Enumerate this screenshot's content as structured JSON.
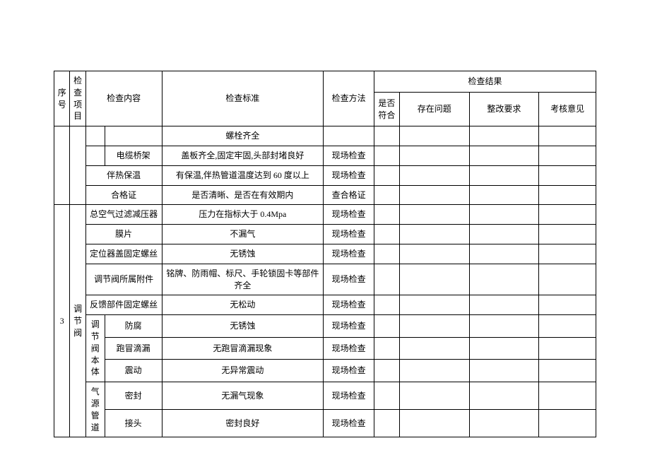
{
  "header": {
    "seq": "序号",
    "item": "检查项目",
    "content": "检查内容",
    "standard": "检查标准",
    "method": "检查方法",
    "result_group": "检查结果",
    "fit": "是否符合",
    "problem": "存在问题",
    "rectify": "整改要求",
    "evaluate": "考核意见"
  },
  "rows": {
    "r0_std": "螺栓齐全",
    "r1_content": "电缆桥架",
    "r1_std": "盖板齐全,固定牢固,头部封堵良好",
    "r1_meth": "现场检查",
    "r2_content": "伴热保温",
    "r2_std": "有保温,伴热管道温度达到 60 度以上",
    "r2_meth": "现场检查",
    "r3_content": "合格证",
    "r3_std": "是否清晰、是否在有效期内",
    "r3_meth": "查合格证",
    "r4_content": "总空气过滤减压器",
    "r4_std": "压力在指标大于 0.4Mpa",
    "r4_meth": "现场检查",
    "r5_content": "膜片",
    "r5_std": "不漏气",
    "r5_meth": "现场检查",
    "r6_content": "定位器盖固定螺丝",
    "r6_std": "无锈蚀",
    "r6_meth": "现场检查",
    "r7_content": "调节阀所属附件",
    "r7_std": "铭牌、防雨帽、标尺、手轮锁固卡等部件齐全",
    "r7_meth": "现场检查",
    "r8_content": "反馈部件固定螺丝",
    "r8_std": "无松动",
    "r8_meth": "现场检查",
    "g1_label": "调节阀本体",
    "r9_content": "防腐",
    "r9_std": "无锈蚀",
    "r9_meth": "现场检查",
    "r10_content": "跑冒滴漏",
    "r10_std": "无跑冒滴漏现象",
    "r10_meth": "现场检查",
    "r11_content": "震动",
    "r11_std": "无异常震动",
    "r11_meth": "现场检查",
    "g2_label": "气源管道",
    "r12_content": "密封",
    "r12_std": "无漏气现象",
    "r12_meth": "现场检查",
    "r13_content": "接头",
    "r13_std": "密封良好",
    "r13_meth": "现场检查",
    "section_seq": "3",
    "section_item": "调节阀"
  }
}
